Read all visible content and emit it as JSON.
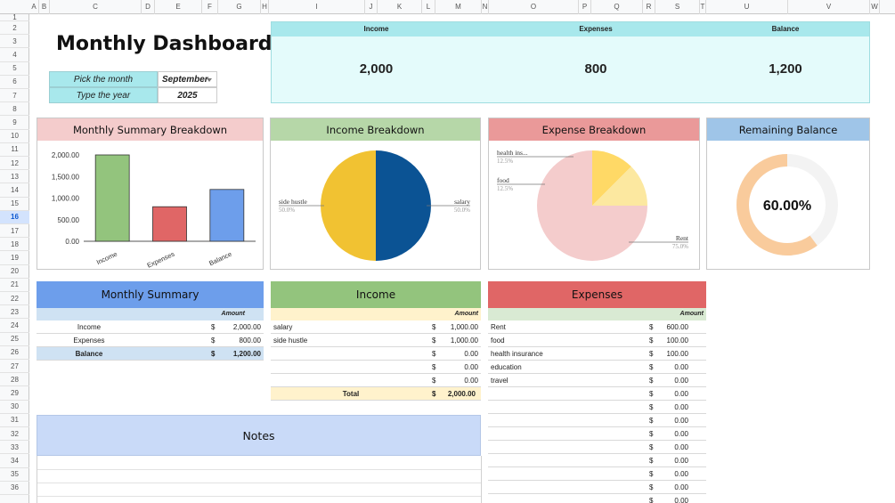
{
  "sheet": {
    "columns": [
      "A",
      "B",
      "C",
      "D",
      "E",
      "F",
      "G",
      "H",
      "I",
      "J",
      "K",
      "L",
      "M",
      "N",
      "O",
      "P",
      "Q",
      "R",
      "S",
      "T",
      "U",
      "V",
      "W"
    ],
    "rows": [
      "1",
      "2",
      "3",
      "4",
      "5",
      "6",
      "7",
      "8",
      "9",
      "10",
      "11",
      "12",
      "13",
      "14",
      "15",
      "16",
      "17",
      "18",
      "19",
      "20",
      "21",
      "22",
      "23",
      "24",
      "25",
      "26",
      "27",
      "28",
      "29",
      "30",
      "31",
      "32",
      "33",
      "34",
      "35",
      "36"
    ],
    "selected_row": "16"
  },
  "title": "Monthly Dashboard",
  "picker": {
    "month_label": "Pick the month",
    "month_value": "September",
    "year_label": "Type the year",
    "year_value": "2025"
  },
  "kpi": {
    "income_label": "Income",
    "income_value": "2,000",
    "expenses_label": "Expenses",
    "expenses_value": "800",
    "balance_label": "Balance",
    "balance_value": "1,200"
  },
  "panels": {
    "summary_title": "Monthly Summary Breakdown",
    "income_title": "Income Breakdown",
    "expense_title": "Expense Breakdown",
    "remaining_title": "Remaining Balance"
  },
  "colors": {
    "summary_hdr": "#f4cccc",
    "income_hdr": "#b6d7a8",
    "expense_hdr": "#ea9999",
    "remaining_hdr": "#9fc5e8",
    "bar_income": "#93c47d",
    "bar_expenses": "#e06666",
    "bar_balance": "#6d9eeb",
    "pie_yellow": "#f1c232",
    "pie_blue": "#0b5394",
    "exp_rent": "#f4cccc",
    "exp_food": "#ffd966",
    "exp_health": "#fce8a0",
    "donut": "#f9cb9c",
    "donut_track": "#f3f3f3"
  },
  "chart_data": [
    {
      "type": "bar",
      "title": "Monthly Summary Breakdown",
      "categories": [
        "Income",
        "Expenses",
        "Balance"
      ],
      "values": [
        2000,
        800,
        1200
      ],
      "yticks": [
        "2,000.00",
        "1,500.00",
        "1,000.00",
        "500.00",
        "0.00"
      ],
      "ylim": [
        0,
        2000
      ]
    },
    {
      "type": "pie",
      "title": "Income Breakdown",
      "labels": [
        "salary",
        "side hustle"
      ],
      "values": [
        1000,
        1000
      ],
      "pct": [
        "50.0%",
        "50.0%"
      ]
    },
    {
      "type": "pie",
      "title": "Expense Breakdown",
      "labels": [
        "Rent",
        "food",
        "health ins..."
      ],
      "values": [
        600,
        100,
        100
      ],
      "pct": [
        "75.0%",
        "12.5%",
        "12.5%"
      ]
    },
    {
      "type": "pie",
      "title": "Remaining Balance",
      "values": [
        60,
        40
      ],
      "center_label": "60.00%"
    }
  ],
  "summary": {
    "title": "Monthly Summary",
    "amount_hdr": "Amount",
    "rows": [
      {
        "label": "Income",
        "cur": "$",
        "amount": "2,000.00"
      },
      {
        "label": "Expenses",
        "cur": "$",
        "amount": "800.00"
      },
      {
        "label": "Balance",
        "cur": "$",
        "amount": "1,200.00"
      }
    ]
  },
  "income": {
    "title": "Income",
    "amount_hdr": "Amount",
    "rows": [
      {
        "label": "salary",
        "cur": "$",
        "amount": "1,000.00"
      },
      {
        "label": "side hustle",
        "cur": "$",
        "amount": "1,000.00"
      },
      {
        "label": "",
        "cur": "$",
        "amount": "0.00"
      },
      {
        "label": "",
        "cur": "$",
        "amount": "0.00"
      },
      {
        "label": "",
        "cur": "$",
        "amount": "0.00"
      }
    ],
    "total_label": "Total",
    "total_cur": "$",
    "total_amount": "2,000.00"
  },
  "expenses": {
    "title": "Expenses",
    "amount_hdr": "Amount",
    "rows": [
      {
        "label": "Rent",
        "cur": "$",
        "amount": "600.00"
      },
      {
        "label": "food",
        "cur": "$",
        "amount": "100.00"
      },
      {
        "label": "health insurance",
        "cur": "$",
        "amount": "100.00"
      },
      {
        "label": "education",
        "cur": "$",
        "amount": "0.00"
      },
      {
        "label": "travel",
        "cur": "$",
        "amount": "0.00"
      },
      {
        "label": "",
        "cur": "$",
        "amount": "0.00"
      },
      {
        "label": "",
        "cur": "$",
        "amount": "0.00"
      },
      {
        "label": "",
        "cur": "$",
        "amount": "0.00"
      },
      {
        "label": "",
        "cur": "$",
        "amount": "0.00"
      },
      {
        "label": "",
        "cur": "$",
        "amount": "0.00"
      },
      {
        "label": "",
        "cur": "$",
        "amount": "0.00"
      },
      {
        "label": "",
        "cur": "$",
        "amount": "0.00"
      },
      {
        "label": "",
        "cur": "$",
        "amount": "0.00"
      },
      {
        "label": "",
        "cur": "$",
        "amount": "0.00"
      }
    ]
  },
  "notes": {
    "title": "Notes"
  }
}
